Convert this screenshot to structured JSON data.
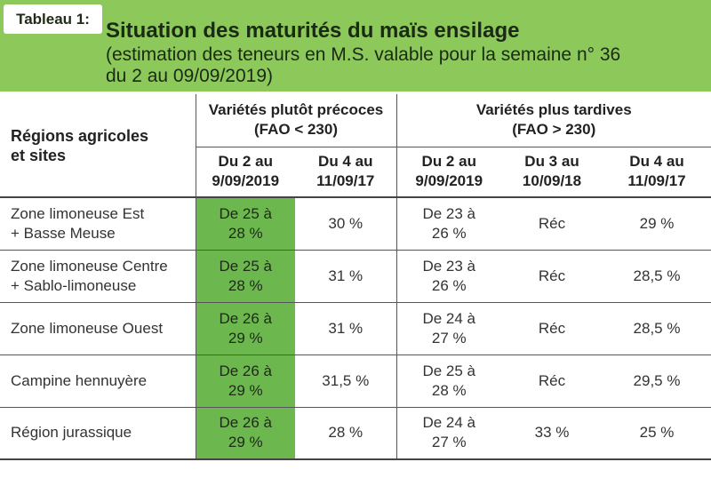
{
  "header": {
    "tag": "Tableau 1:",
    "title": "Situation des maturités du maïs ensilage",
    "subtitle_line1": "(estimation des teneurs en M.S. valable pour la semaine n° 36",
    "subtitle_line2": "du 2 au 09/09/2019)"
  },
  "colors": {
    "header_bg": "#8dc85a",
    "highlight": "#6db84e"
  },
  "table": {
    "region_header_line1": "Régions agricoles",
    "region_header_line2": "et sites",
    "groups": [
      {
        "line1": "Variétés plutôt précoces",
        "line2": "(FAO < 230)"
      },
      {
        "line1": "Variétés plus tardives",
        "line2": "(FAO > 230)"
      }
    ],
    "dates": [
      {
        "line1": "Du 2 au",
        "line2": "9/09/2019"
      },
      {
        "line1": "Du 4 au",
        "line2": "11/09/17"
      },
      {
        "line1": "Du 2 au",
        "line2": "9/09/2019"
      },
      {
        "line1": "Du 3 au",
        "line2": "10/09/18"
      },
      {
        "line1": "Du 4 au",
        "line2": "11/09/17"
      }
    ],
    "rows": [
      {
        "region_line1": "Zone limoneuse Est",
        "region_line2": "+ Basse Meuse",
        "c1_line1": "De 25 à",
        "c1_line2": "28 %",
        "c2": "30 %",
        "c3_line1": "De 23 à",
        "c3_line2": "26 %",
        "c4": "Réc",
        "c5": "29 %"
      },
      {
        "region_line1": "Zone limoneuse Centre",
        "region_line2": "+ Sablo-limoneuse",
        "c1_line1": "De 25 à",
        "c1_line2": "28 %",
        "c2": "31 %",
        "c3_line1": "De 23 à",
        "c3_line2": "26 %",
        "c4": "Réc",
        "c5": "28,5 %"
      },
      {
        "region_line1": "Zone limoneuse Ouest",
        "region_line2": "",
        "c1_line1": "De 26 à",
        "c1_line2": "29 %",
        "c2": "31 %",
        "c3_line1": "De 24 à",
        "c3_line2": "27 %",
        "c4": "Réc",
        "c5": "28,5 %"
      },
      {
        "region_line1": "Campine hennuyère",
        "region_line2": "",
        "c1_line1": "De 26 à",
        "c1_line2": "29 %",
        "c2": "31,5 %",
        "c3_line1": "De 25 à",
        "c3_line2": "28 %",
        "c4": "Réc",
        "c5": "29,5 %"
      },
      {
        "region_line1": "Région jurassique",
        "region_line2": "",
        "c1_line1": "De 26 à",
        "c1_line2": "29 %",
        "c2": "28 %",
        "c3_line1": "De 24 à",
        "c3_line2": "27 %",
        "c4": "33 %",
        "c5": "25 %"
      }
    ]
  }
}
